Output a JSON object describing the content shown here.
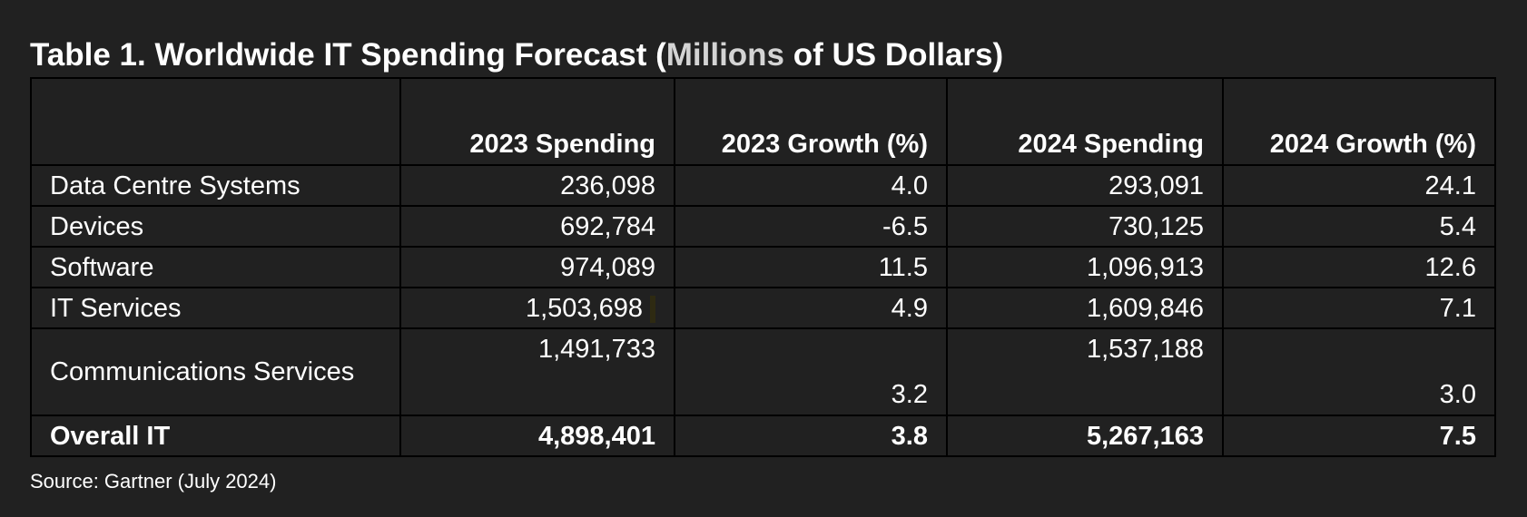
{
  "title": {
    "prefix": "Table 1. Worldwide IT Spending Forecast (",
    "highlight": "Millions",
    "suffix": " of US Dollars)"
  },
  "table": {
    "headers": [
      "",
      "2023 Spending",
      "2023 Growth (%)",
      "2024 Spending",
      "2024 Growth (%)"
    ],
    "rows": [
      {
        "category": "Data Centre Systems",
        "spending_2023": "236,098",
        "growth_2023": "4.0",
        "spending_2024": "293,091",
        "growth_2024": "24.1"
      },
      {
        "category": "Devices",
        "spending_2023": "692,784",
        "growth_2023": "-6.5",
        "spending_2024": "730,125",
        "growth_2024": "5.4"
      },
      {
        "category": "Software",
        "spending_2023": "974,089",
        "growth_2023": "11.5",
        "spending_2024": "1,096,913",
        "growth_2024": "12.6"
      },
      {
        "category": "IT Services",
        "spending_2023": "1,503,698",
        "growth_2023": "4.9",
        "spending_2024": "1,609,846",
        "growth_2024": "7.1"
      },
      {
        "category": "Communications Services",
        "spending_2023": "1,491,733",
        "growth_2023": "3.2",
        "spending_2024": "1,537,188",
        "growth_2024": "3.0"
      }
    ],
    "total": {
      "category": "Overall IT",
      "spending_2023": "4,898,401",
      "growth_2023": "3.8",
      "spending_2024": "5,267,163",
      "growth_2024": "7.5"
    }
  },
  "source": "Source: Gartner (July 2024)"
}
